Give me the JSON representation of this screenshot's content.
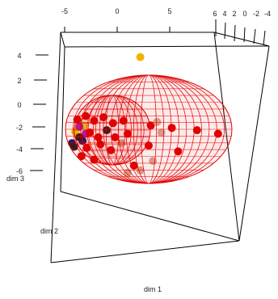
{
  "chart_data": {
    "type": "scatter3d",
    "title": "",
    "axes": {
      "x": {
        "label": "dim 1",
        "ticks": [
          "-5",
          "0",
          "5"
        ]
      },
      "y": {
        "label": "dim 2",
        "ticks": [
          "6",
          "4",
          "2",
          "0",
          "-2",
          "-4"
        ]
      },
      "z": {
        "label": "dim 3",
        "ticks": [
          "4",
          "2",
          "0",
          "-2",
          "-4",
          "-6"
        ]
      }
    },
    "ellipsoids": [
      {
        "name": "outer",
        "color": "#e00000"
      },
      {
        "name": "inner",
        "color": "#e00000"
      }
    ],
    "points": [
      {
        "x": 2.2,
        "y": 0,
        "z": 4,
        "color": "#f0b400"
      },
      {
        "x": -3.2,
        "y": 0,
        "z": -1.8,
        "color": "#e6e000"
      },
      {
        "x": -4.0,
        "y": 0,
        "z": -2.3,
        "color": "#e6e000"
      },
      {
        "x": -3.6,
        "y": 0,
        "z": -1.9,
        "color": "#b020b0"
      },
      {
        "x": -3.0,
        "y": 0,
        "z": -2.5,
        "color": "#b020b0"
      },
      {
        "x": -4.3,
        "y": 0,
        "z": -3.3,
        "color": "#1a1a6e"
      },
      {
        "x": -3.3,
        "y": 0,
        "z": -3.1,
        "color": "#1a1a6e"
      },
      {
        "x": -4.1,
        "y": 0,
        "z": -3.6,
        "color": "#222222"
      },
      {
        "x": -3.6,
        "y": 0,
        "z": -2.8,
        "color": "#222222"
      },
      {
        "x": -1.0,
        "y": 0,
        "z": -2.2,
        "color": "#222222"
      },
      {
        "x": -3.8,
        "y": 0,
        "z": -1.3,
        "color": "#e00000"
      },
      {
        "x": -3.0,
        "y": 0,
        "z": -1.0,
        "color": "#e00000"
      },
      {
        "x": -2.2,
        "y": 0,
        "z": -1.4,
        "color": "#e00000"
      },
      {
        "x": -1.3,
        "y": 0,
        "z": -1.1,
        "color": "#e00000"
      },
      {
        "x": -0.4,
        "y": 0,
        "z": -1.6,
        "color": "#e00000"
      },
      {
        "x": 0.6,
        "y": 0,
        "z": -1.4,
        "color": "#e00000"
      },
      {
        "x": -2.6,
        "y": 0,
        "z": -2.4,
        "color": "#e00000"
      },
      {
        "x": -1.8,
        "y": 0,
        "z": -2.8,
        "color": "#e00000"
      },
      {
        "x": -0.2,
        "y": 0,
        "z": -2.8,
        "color": "#e00000"
      },
      {
        "x": 1.0,
        "y": 0,
        "z": -2.5,
        "color": "#e00000"
      },
      {
        "x": -2.9,
        "y": 0,
        "z": -3.7,
        "color": "#e00000"
      },
      {
        "x": -1.6,
        "y": 0,
        "z": -3.4,
        "color": "#e00000"
      },
      {
        "x": -0.6,
        "y": 0,
        "z": -3.9,
        "color": "#e00000"
      },
      {
        "x": -3.4,
        "y": 0,
        "z": -4.4,
        "color": "#e00000"
      },
      {
        "x": -2.2,
        "y": 0,
        "z": -4.7,
        "color": "#e00000"
      },
      {
        "x": 3.2,
        "y": 0,
        "z": -1.8,
        "color": "#e00000"
      },
      {
        "x": 5.2,
        "y": 0,
        "z": -2.0,
        "color": "#e00000"
      },
      {
        "x": 7.6,
        "y": 0,
        "z": -2.2,
        "color": "#e00000"
      },
      {
        "x": 9.6,
        "y": 0,
        "z": -2.5,
        "color": "#e00000"
      },
      {
        "x": 3.0,
        "y": 0,
        "z": -3.5,
        "color": "#e00000"
      },
      {
        "x": 5.8,
        "y": 0,
        "z": -4.0,
        "color": "#e00000"
      },
      {
        "x": 1.6,
        "y": 0,
        "z": -5.2,
        "color": "#e00000"
      },
      {
        "x": 3.8,
        "y": 0,
        "z": -1.5,
        "color": "#d8a890"
      },
      {
        "x": 4.2,
        "y": 0,
        "z": -2.4,
        "color": "#d8a890"
      },
      {
        "x": 3.4,
        "y": 0,
        "z": -4.8,
        "color": "#d8a890"
      },
      {
        "x": 1.0,
        "y": 0,
        "z": -5.8,
        "color": "#d8a890"
      },
      {
        "x": 2.2,
        "y": 0,
        "z": -5.6,
        "color": "#d8a890"
      },
      {
        "x": 0.4,
        "y": 0,
        "z": -3.3,
        "color": "#d8a890"
      }
    ]
  }
}
